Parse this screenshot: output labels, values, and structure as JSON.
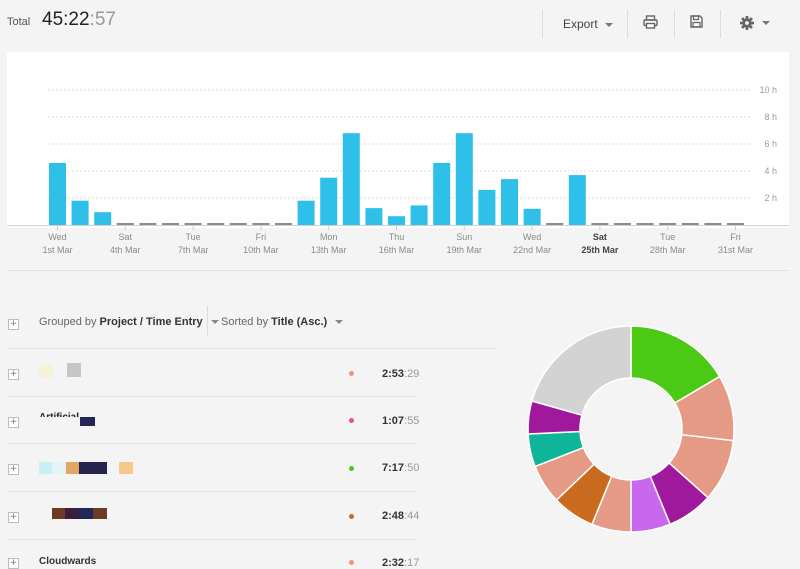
{
  "header": {
    "total_label": "Total",
    "total_hm": "45:22",
    "total_sec": ":57",
    "export_label": "Export",
    "icons": [
      "print-icon",
      "save-icon",
      "gear-icon"
    ]
  },
  "chart_data": {
    "type": "bar",
    "y_ticks": [
      "10 h",
      "8 h",
      "6 h",
      "4 h",
      "2 h"
    ],
    "ylim": [
      0,
      11
    ],
    "bar_color": "#2ec0e8",
    "zero_color": "#8c8c8c",
    "values": [
      4.6,
      1.8,
      0.95,
      0,
      0,
      0,
      0,
      0,
      0,
      0,
      0,
      1.8,
      3.5,
      6.8,
      1.25,
      0.65,
      1.45,
      4.6,
      6.8,
      2.6,
      3.4,
      1.2,
      0,
      3.7,
      0,
      0,
      0,
      0,
      0,
      0,
      0
    ],
    "x_tick_labels": [
      {
        "day": "Wed",
        "date": "1st Mar",
        "i": 0,
        "bold": false
      },
      {
        "day": "Sat",
        "date": "4th Mar",
        "i": 3,
        "bold": false
      },
      {
        "day": "Tue",
        "date": "7th Mar",
        "i": 6,
        "bold": false
      },
      {
        "day": "Fri",
        "date": "10th Mar",
        "i": 9,
        "bold": false
      },
      {
        "day": "Mon",
        "date": "13th Mar",
        "i": 12,
        "bold": false
      },
      {
        "day": "Thu",
        "date": "16th Mar",
        "i": 15,
        "bold": false
      },
      {
        "day": "Sun",
        "date": "19th Mar",
        "i": 18,
        "bold": false
      },
      {
        "day": "Wed",
        "date": "22nd Mar",
        "i": 21,
        "bold": false
      },
      {
        "day": "Sat",
        "date": "25th Mar",
        "i": 24,
        "bold": true
      },
      {
        "day": "Tue",
        "date": "28th Mar",
        "i": 27,
        "bold": false
      },
      {
        "day": "Fri",
        "date": "31st Mar",
        "i": 30,
        "bold": false
      }
    ]
  },
  "controls": {
    "grouped_prefix": "Grouped by",
    "grouped_value": "Project / Time Entry",
    "sorted_prefix": "Sorted by",
    "sorted_value": "Title (Asc.)"
  },
  "rows": [
    {
      "title": "",
      "dot": "#f0957b",
      "time": "2:53",
      "sec": ":29"
    },
    {
      "title": "Artificial",
      "dot": "#f0508a",
      "time": "1:07",
      "sec": ":55"
    },
    {
      "title": "",
      "dot": "#4cc914",
      "time": "7:17",
      "sec": ":50"
    },
    {
      "title": "",
      "dot": "#c96a1e",
      "time": "2:48",
      "sec": ":44"
    },
    {
      "title": "Cloudwards",
      "dot": "#f0957b",
      "time": "2:32",
      "sec": ":17"
    }
  ],
  "donut": {
    "colors": [
      "#4cc914",
      "#e49a84",
      "#e49a84",
      "#a0199d",
      "#c868ef",
      "#e49a84",
      "#c96a1e",
      "#e49a84",
      "#0fb598",
      "#a0199d",
      "#d3d3d3"
    ],
    "values": [
      16,
      10,
      9.5,
      7,
      6,
      6,
      6.5,
      6,
      5,
      5,
      20
    ]
  }
}
